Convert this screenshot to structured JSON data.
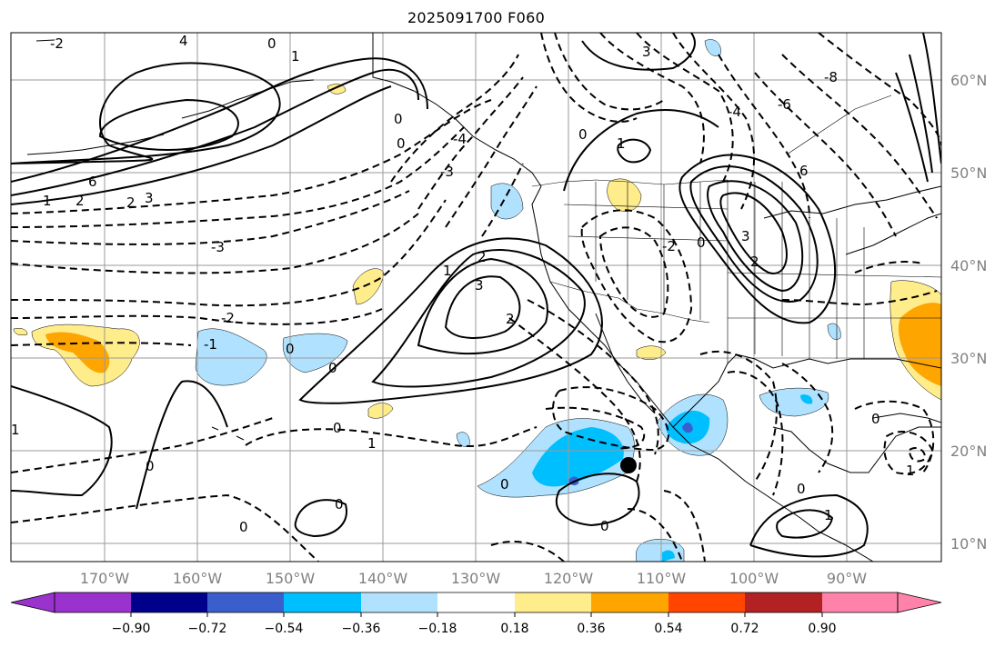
{
  "title": "2025091700 F060",
  "map": {
    "lon_labels": [
      "170°W",
      "160°W",
      "150°W",
      "140°W",
      "130°W",
      "120°W",
      "110°W",
      "100°W",
      "90°W"
    ],
    "lat_labels": [
      "60°N",
      "50°N",
      "40°N",
      "30°N",
      "20°N",
      "10°N"
    ],
    "contour_labels": [
      "0",
      "-1",
      "-2",
      "-3",
      "-4",
      "-6",
      "-8",
      "1",
      "2",
      "3",
      "4",
      "6"
    ],
    "storm_marker": "black-dot"
  },
  "colorbar": {
    "tick_labels": [
      "−0.90",
      "−0.72",
      "−0.54",
      "−0.36",
      "−0.18",
      "0.18",
      "0.36",
      "0.54",
      "0.72",
      "0.90"
    ],
    "colors": [
      "#9a32cd",
      "#00008b",
      "#3a5fcd",
      "#00bfff",
      "#b0e2ff",
      "#ffffff",
      "#ffec8b",
      "#ffa500",
      "#ff4500",
      "#b22222",
      "#ff82ab"
    ]
  }
}
